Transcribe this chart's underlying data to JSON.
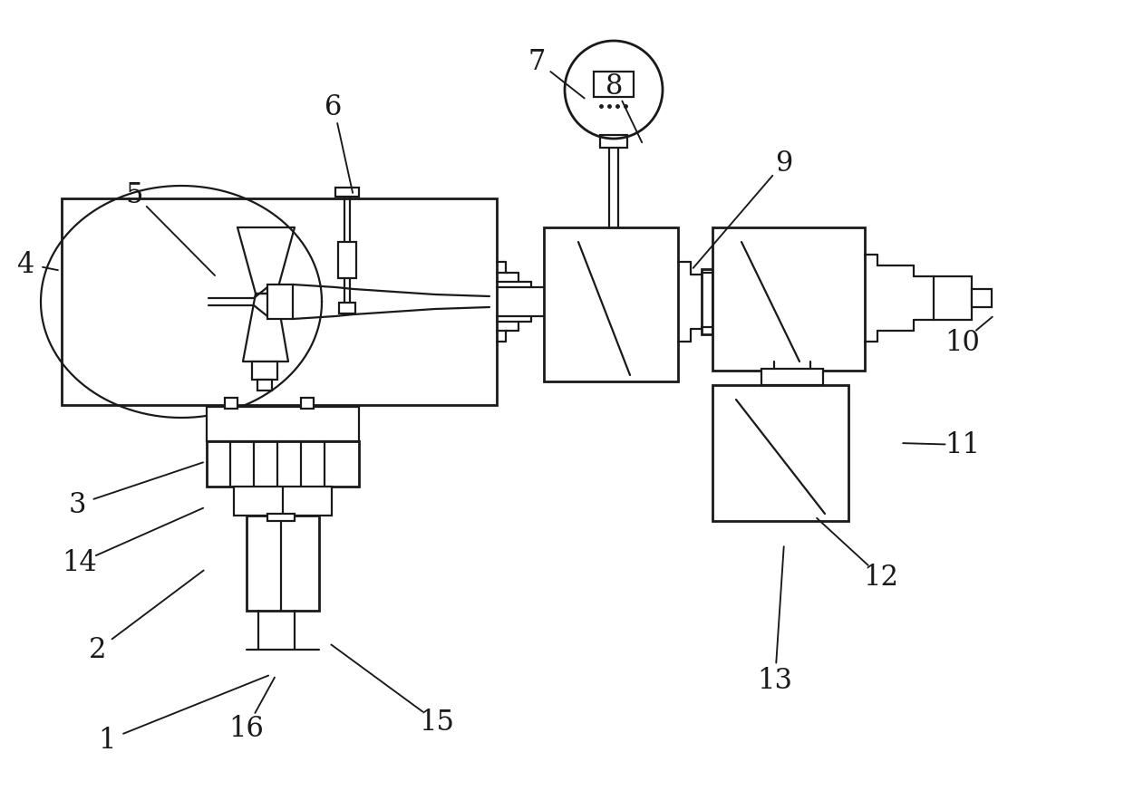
{
  "bg_color": "#ffffff",
  "lc": "#1a1a1a",
  "lw": 1.6,
  "lwt": 2.0,
  "fs": 22,
  "labels": [
    [
      "1",
      118,
      818,
      300,
      745
    ],
    [
      "2",
      108,
      718,
      228,
      628
    ],
    [
      "3",
      85,
      558,
      228,
      510
    ],
    [
      "4",
      28,
      292,
      68,
      300
    ],
    [
      "5",
      148,
      215,
      240,
      308
    ],
    [
      "6",
      368,
      118,
      390,
      218
    ],
    [
      "7",
      592,
      68,
      648,
      112
    ],
    [
      "8",
      678,
      95,
      710,
      162
    ],
    [
      "9",
      865,
      180,
      762,
      300
    ],
    [
      "10",
      1062,
      378,
      1098,
      348
    ],
    [
      "11",
      1062,
      492,
      992,
      490
    ],
    [
      "12",
      972,
      638,
      898,
      570
    ],
    [
      "13",
      855,
      752,
      865,
      600
    ],
    [
      "14",
      88,
      622,
      228,
      560
    ],
    [
      "15",
      482,
      798,
      362,
      710
    ],
    [
      "16",
      272,
      805,
      305,
      745
    ]
  ]
}
